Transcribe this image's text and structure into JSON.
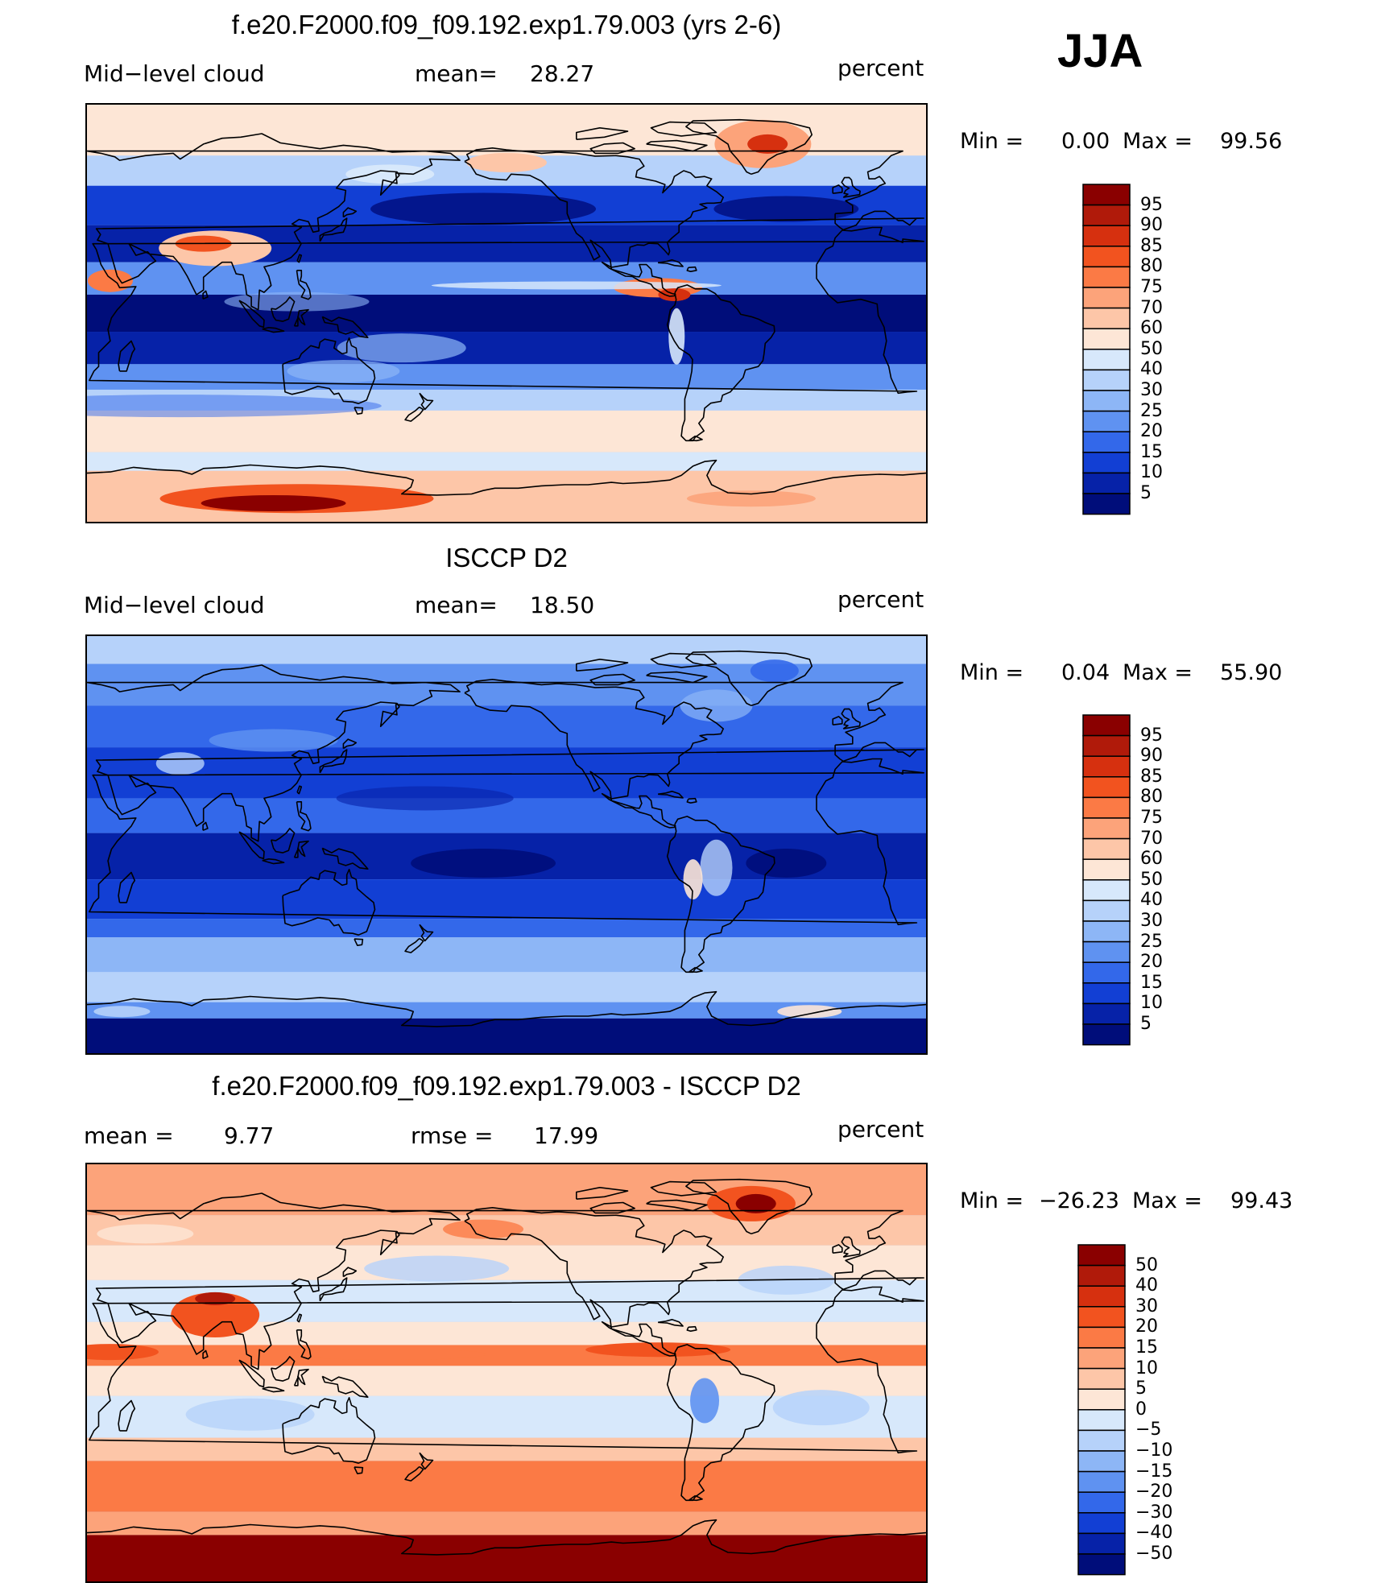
{
  "season": "JJA",
  "panels": [
    {
      "id": "model",
      "title": "f.e20.F2000.f09_f09.192.exp1.79.003 (yrs 2-6)",
      "left_label": "Mid−level cloud",
      "stat_label": "mean=",
      "stat_value": "28.27",
      "stat2_label": "",
      "stat2_value": "",
      "units": "percent",
      "min_label": "Min =",
      "min_value": "0.00",
      "max_label": "Max =",
      "max_value": "99.56",
      "colorbar_labels": [
        "95",
        "90",
        "85",
        "80",
        "75",
        "70",
        "60",
        "50",
        "40",
        "30",
        "25",
        "20",
        "15",
        "10",
        "5"
      ],
      "colorbar_colors": [
        "#8a0000",
        "#b01a0a",
        "#d6300f",
        "#f2531f",
        "#fb7a45",
        "#fca37a",
        "#fdc6a8",
        "#fde6d6",
        "#d7e8fb",
        "#b6d2fa",
        "#8db6f6",
        "#5f92f1",
        "#3368ea",
        "#123fd4",
        "#0622a8",
        "#000d7a"
      ]
    },
    {
      "id": "obs",
      "title": "ISCCP D2",
      "left_label": "Mid−level cloud",
      "stat_label": "mean=",
      "stat_value": "18.50",
      "stat2_label": "",
      "stat2_value": "",
      "units": "percent",
      "min_label": "Min =",
      "min_value": "0.04",
      "max_label": "Max =",
      "max_value": "55.90",
      "colorbar_labels": [
        "95",
        "90",
        "85",
        "80",
        "75",
        "70",
        "60",
        "50",
        "40",
        "30",
        "25",
        "20",
        "15",
        "10",
        "5"
      ],
      "colorbar_colors": [
        "#8a0000",
        "#b01a0a",
        "#d6300f",
        "#f2531f",
        "#fb7a45",
        "#fca37a",
        "#fdc6a8",
        "#fde6d6",
        "#d7e8fb",
        "#b6d2fa",
        "#8db6f6",
        "#5f92f1",
        "#3368ea",
        "#123fd4",
        "#0622a8",
        "#000d7a"
      ]
    },
    {
      "id": "diff",
      "title": "f.e20.F2000.f09_f09.192.exp1.79.003 - ISCCP D2",
      "left_label": "mean =",
      "stat_label": "",
      "stat_value": "9.77",
      "stat2_label": "rmse =",
      "stat2_value": "17.99",
      "units": "percent",
      "min_label": "Min =",
      "min_value": "−26.23",
      "max_label": "Max =",
      "max_value": "99.43",
      "colorbar_labels": [
        "50",
        "40",
        "30",
        "20",
        "15",
        "10",
        "5",
        "0",
        "−5",
        "−10",
        "−15",
        "−20",
        "−30",
        "−40",
        "−50"
      ],
      "colorbar_colors": [
        "#8a0000",
        "#b01a0a",
        "#d6300f",
        "#f2531f",
        "#fb7a45",
        "#fca37a",
        "#fdc6a8",
        "#fde6d6",
        "#d7e8fb",
        "#b6d2fa",
        "#8db6f6",
        "#5f92f1",
        "#3368ea",
        "#123fd4",
        "#0622a8",
        "#000d7a"
      ]
    }
  ]
}
